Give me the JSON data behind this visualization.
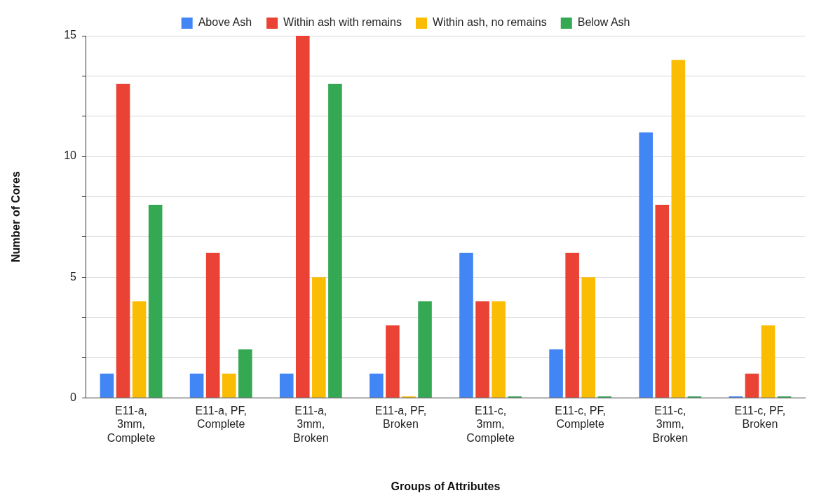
{
  "chart_data": {
    "type": "bar",
    "xlabel": "Groups of Attributes",
    "ylabel": "Number of Cores",
    "categories": [
      "E11-a, 3mm, Complete",
      "E11-a, PF, Complete",
      "E11-a, 3mm, Broken",
      "E11-a, PF, Broken",
      "E11-c, 3mm, Complete",
      "E11-c, PF, Complete",
      "E11-c, 3mm, Broken",
      "E11-c, PF, Broken"
    ],
    "series": [
      {
        "name": "Above Ash",
        "color": "#4285f4",
        "values": [
          1,
          1,
          1,
          1,
          6,
          2,
          11,
          0
        ]
      },
      {
        "name": "Within ash with remains",
        "color": "#ea4335",
        "values": [
          13,
          6,
          15,
          3,
          4,
          6,
          8,
          1
        ]
      },
      {
        "name": "Within ash, no remains",
        "color": "#fbbc04",
        "values": [
          4,
          1,
          5,
          0,
          4,
          5,
          14,
          3
        ]
      },
      {
        "name": "Below Ash",
        "color": "#34a853",
        "values": [
          8,
          2,
          13,
          4,
          0,
          0,
          0,
          0
        ]
      }
    ],
    "ylim": [
      0,
      15
    ],
    "yticks": [
      0,
      {
        "value": 1.67,
        "label": null
      },
      {
        "value": 3.33,
        "label": null
      },
      5,
      {
        "value": 6.67,
        "label": null
      },
      {
        "value": 8.33,
        "label": null
      },
      10,
      {
        "value": 11.67,
        "label": null
      },
      {
        "value": 13.33,
        "label": null
      },
      15
    ],
    "grid": "y",
    "legend": "top"
  }
}
